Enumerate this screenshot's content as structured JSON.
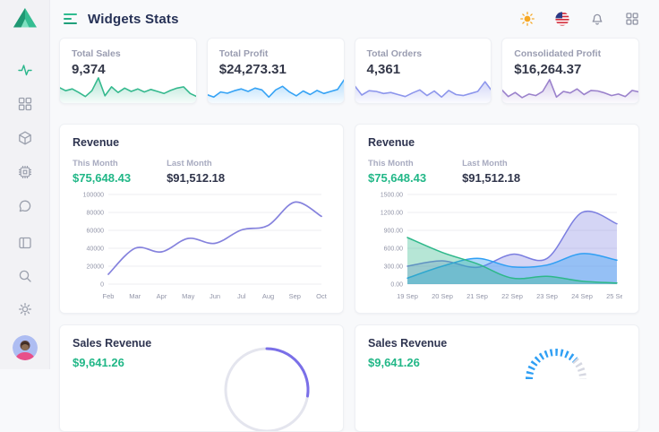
{
  "app": {
    "title": "Widgets Stats"
  },
  "sidebar": {
    "logo": "triangle-logo",
    "items": [
      {
        "icon": "activity-icon",
        "active": true
      },
      {
        "icon": "grid-icon",
        "active": false
      },
      {
        "icon": "package-icon",
        "active": false
      },
      {
        "icon": "cpu-icon",
        "active": false
      },
      {
        "icon": "chat-icon",
        "active": false
      },
      {
        "icon": "layout-icon",
        "active": false
      },
      {
        "icon": "search-icon",
        "active": false
      },
      {
        "icon": "settings-gear-icon",
        "active": false
      },
      {
        "icon": "user-avatar",
        "active": false
      }
    ]
  },
  "header": {
    "icons": [
      "sun-theme-icon",
      "us-flag-icon",
      "notifications-bell-icon",
      "apps-grid-icon"
    ]
  },
  "stats": {
    "cards": [
      {
        "label": "Total Sales",
        "value": "9,374",
        "color": "#35b98e"
      },
      {
        "label": "Total Profit",
        "value": "$24,273.31",
        "color": "#36a3f5"
      },
      {
        "label": "Total Orders",
        "value": "4,361",
        "color": "#8d96ec"
      },
      {
        "label": "Consolidated Profit",
        "value": "$16,264.37",
        "color": "#9b82cc"
      }
    ]
  },
  "revenue": {
    "title": "Revenue",
    "this_month_label": "This Month",
    "this_month_value": "$75,648.43",
    "last_month_label": "Last Month",
    "last_month_value": "$91,512.18"
  },
  "sales": {
    "title": "Sales Revenue",
    "value": "$9,641.26"
  },
  "chart_data": [
    {
      "id": "spark-total-sales",
      "type": "area",
      "title": "Total Sales sparkline",
      "color": "#35b98e",
      "values": [
        58,
        45,
        52,
        38,
        22,
        45,
        95,
        25,
        60,
        38,
        55,
        42,
        52,
        40,
        50,
        42,
        34,
        46,
        55,
        60,
        34,
        22
      ]
    },
    {
      "id": "spark-total-profit",
      "type": "area",
      "title": "Total Profit sparkline",
      "color": "#36a3f5",
      "values": [
        30,
        20,
        40,
        35,
        45,
        52,
        42,
        55,
        48,
        20,
        48,
        62,
        40,
        25,
        44,
        30,
        46,
        34,
        42,
        50,
        90
      ]
    },
    {
      "id": "spark-total-orders",
      "type": "area",
      "title": "Total Orders sparkline",
      "color": "#8d96ec",
      "values": [
        65,
        28,
        45,
        42,
        34,
        38,
        30,
        22,
        36,
        48,
        26,
        44,
        20,
        46,
        30,
        26,
        34,
        42,
        80,
        42
      ]
    },
    {
      "id": "spark-consolidated-profit",
      "type": "area",
      "title": "Consolidated Profit sparkline",
      "color": "#9b82cc",
      "values": [
        50,
        22,
        38,
        18,
        32,
        26,
        42,
        88,
        20,
        42,
        36,
        52,
        30,
        46,
        44,
        36,
        26,
        32,
        22,
        46,
        40
      ]
    },
    {
      "id": "revenue-monthly",
      "type": "line",
      "title": "Revenue by month",
      "categories": [
        "Feb",
        "Mar",
        "Apr",
        "May",
        "Jun",
        "Jul",
        "Aug",
        "Sep",
        "Oct"
      ],
      "values": [
        11000,
        40000,
        36000,
        51000,
        45500,
        60500,
        65500,
        91500,
        75648
      ],
      "ylim": [
        0,
        100000
      ],
      "yticks": [
        0,
        20000,
        40000,
        60000,
        80000,
        100000
      ],
      "ytick_labels": [
        "0",
        "20000",
        "40000",
        "60000",
        "80000",
        "100000"
      ],
      "color": "#8582dd",
      "grid": true,
      "legend": "none"
    },
    {
      "id": "revenue-daily",
      "type": "area",
      "title": "Revenue by day",
      "categories": [
        "19 Sep",
        "20 Sep",
        "21 Sep",
        "22 Sep",
        "23 Sep",
        "24 Sep",
        "25 Sep"
      ],
      "ylim": [
        0,
        1500
      ],
      "yticks": [
        0,
        300,
        600,
        900,
        1200,
        1500
      ],
      "ytick_labels": [
        "0.00",
        "300.00",
        "600.00",
        "900.00",
        "1200.00",
        "1500.00"
      ],
      "grid": true,
      "legend": "none",
      "series": [
        {
          "name": "series-purple",
          "color": "#7b7ee0",
          "values": [
            300,
            390,
            280,
            500,
            430,
            1200,
            1010
          ]
        },
        {
          "name": "series-blue",
          "color": "#2f9ff4",
          "values": [
            100,
            300,
            430,
            290,
            320,
            510,
            400
          ]
        },
        {
          "name": "series-green",
          "color": "#2eb88a",
          "values": [
            780,
            530,
            340,
            100,
            130,
            50,
            20
          ]
        }
      ]
    },
    {
      "id": "sales-donut",
      "type": "donut",
      "title": "Sales Revenue donut (partially visible)",
      "colors": [
        "#7a6fe8",
        "#e4e5ee"
      ]
    },
    {
      "id": "sales-gauge",
      "type": "gauge",
      "title": "Sales Revenue gauge (partially visible)",
      "colors": [
        "#2f9ff4",
        "#d6d8e2"
      ]
    }
  ]
}
